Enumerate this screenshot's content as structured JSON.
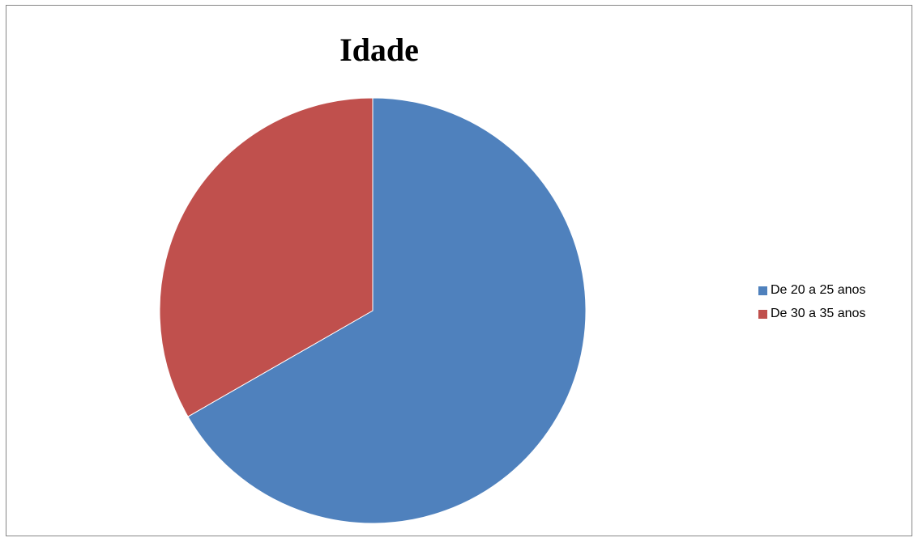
{
  "chart_data": {
    "type": "pie",
    "title": "Idade",
    "categories": [
      "De 20 a 25 anos",
      "De 30 a 35 anos"
    ],
    "values": [
      66.7,
      33.3
    ],
    "colors": [
      "#4F81BD",
      "#C0504D"
    ],
    "start_angle": "12 o'clock",
    "direction": "clockwise",
    "legend_position": "right"
  }
}
